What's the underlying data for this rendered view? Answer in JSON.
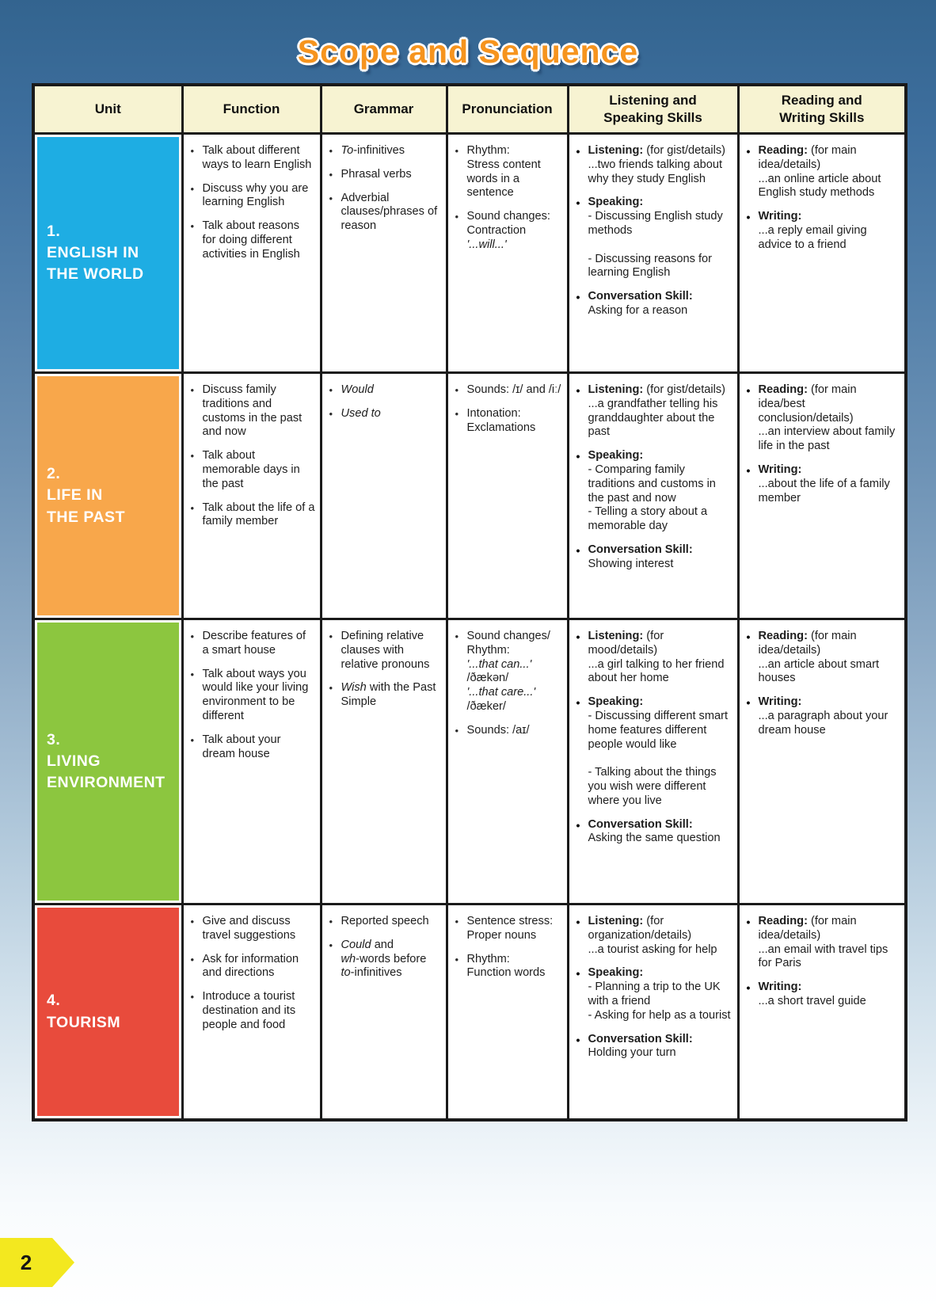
{
  "page": {
    "title": "Scope and Sequence",
    "title_color": "#F6941E",
    "page_number": "2",
    "tab_color": "#F3E81F"
  },
  "table": {
    "headers": [
      "Unit",
      "Function",
      "Grammar",
      "Pronunciation",
      "Listening and\nSpeaking Skills",
      "Reading and\nWriting Skills"
    ],
    "rows": [
      {
        "unit": {
          "number": "1.",
          "name": "ENGLISH IN\nTHE WORLD",
          "color": "#1EADE3"
        },
        "function": [
          "Talk about different ways to learn English",
          "Discuss why you are learning English",
          "Talk about reasons for doing different activities in English"
        ],
        "grammar": [
          [
            {
              "t": "To",
              "i": true
            },
            {
              "t": "-infinitives"
            }
          ],
          [
            {
              "t": "Phrasal verbs"
            }
          ],
          [
            {
              "t": "Adverbial clauses/phrases of reason"
            }
          ]
        ],
        "pronunciation": [
          [
            {
              "t": "Rhythm:\nStress content words in a sentence"
            }
          ],
          [
            {
              "t": "Sound changes:\nContraction\n"
            },
            {
              "t": "'...will...'",
              "i": true
            }
          ]
        ],
        "listening_speaking": [
          [
            {
              "t": "Listening:",
              "b": true
            },
            {
              "t": " (for gist/details)\n...two friends talking about why they study English"
            }
          ],
          [
            {
              "t": "Speaking:",
              "b": true
            },
            {
              "t": "\n- Discussing English study methods\n\n- Discussing reasons for learning English"
            }
          ],
          [
            {
              "t": "Conversation Skill:",
              "b": true
            },
            {
              "t": "\nAsking for a reason"
            }
          ]
        ],
        "reading_writing": [
          [
            {
              "t": "Reading:",
              "b": true
            },
            {
              "t": " (for main idea/details)\n...an online article about English study methods"
            }
          ],
          [
            {
              "t": "Writing:",
              "b": true
            },
            {
              "t": "\n...a reply email giving advice to a friend"
            }
          ]
        ]
      },
      {
        "unit": {
          "number": "2.",
          "name": "LIFE IN\nTHE PAST",
          "color": "#F8A74B"
        },
        "function": [
          "Discuss family traditions and customs in the past and now",
          "Talk about memorable days in the past",
          "Talk about the life of a family member"
        ],
        "grammar": [
          [
            {
              "t": "Would",
              "i": true
            }
          ],
          [
            {
              "t": "Used to",
              "i": true
            }
          ]
        ],
        "pronunciation": [
          [
            {
              "t": "Sounds: /ɪ/ and /iː/"
            }
          ],
          [
            {
              "t": "Intonation:\nExclamations"
            }
          ]
        ],
        "listening_speaking": [
          [
            {
              "t": "Listening:",
              "b": true
            },
            {
              "t": " (for gist/details)\n...a grandfather telling his granddaughter about the past"
            }
          ],
          [
            {
              "t": "Speaking:",
              "b": true
            },
            {
              "t": "\n- Comparing family traditions and customs in the past and now\n- Telling a story about a memorable day"
            }
          ],
          [
            {
              "t": "Conversation Skill:",
              "b": true
            },
            {
              "t": "\nShowing interest"
            }
          ]
        ],
        "reading_writing": [
          [
            {
              "t": "Reading:",
              "b": true
            },
            {
              "t": " (for main idea/best conclusion/details)\n...an interview about family life in the past"
            }
          ],
          [
            {
              "t": "Writing:",
              "b": true
            },
            {
              "t": "\n...about the life of a family member"
            }
          ]
        ]
      },
      {
        "unit": {
          "number": "3.",
          "name": "LIVING\nENVIRONMENT",
          "color": "#8CC63F"
        },
        "function": [
          "Describe features of a smart house",
          "Talk about ways you would like your living environment to be different",
          "Talk about your dream house"
        ],
        "grammar": [
          [
            {
              "t": "Defining relative clauses with relative pronouns"
            }
          ],
          [
            {
              "t": "Wish",
              "i": true
            },
            {
              "t": " with the Past Simple"
            }
          ]
        ],
        "pronunciation": [
          [
            {
              "t": "Sound changes/\nRhythm:\n"
            },
            {
              "t": "'...that can...'",
              "i": true
            },
            {
              "t": "\n/ðækən/\n"
            },
            {
              "t": "'...that care...'",
              "i": true
            },
            {
              "t": "\n/ðæker/"
            }
          ],
          [
            {
              "t": "Sounds: /aɪ/"
            }
          ]
        ],
        "listening_speaking": [
          [
            {
              "t": "Listening:",
              "b": true
            },
            {
              "t": " (for mood/details)\n...a girl talking to her friend about her home"
            }
          ],
          [
            {
              "t": "Speaking:",
              "b": true
            },
            {
              "t": "\n- Discussing different smart home features different people would like\n\n- Talking about the things you wish were different where you live"
            }
          ],
          [
            {
              "t": "Conversation Skill:",
              "b": true
            },
            {
              "t": "\nAsking the same question"
            }
          ]
        ],
        "reading_writing": [
          [
            {
              "t": "Reading:",
              "b": true
            },
            {
              "t": " (for main idea/details)\n...an article about smart houses"
            }
          ],
          [
            {
              "t": "Writing:",
              "b": true
            },
            {
              "t": "\n...a paragraph about your dream house"
            }
          ]
        ]
      },
      {
        "unit": {
          "number": "4.",
          "name": "TOURISM",
          "color": "#E84B3C"
        },
        "function": [
          "Give and discuss travel suggestions",
          "Ask for information and directions",
          "Introduce a tourist destination and its people and food"
        ],
        "grammar": [
          [
            {
              "t": "Reported speech"
            }
          ],
          [
            {
              "t": "Could",
              "i": true
            },
            {
              "t": " and\n"
            },
            {
              "t": "wh",
              "i": true
            },
            {
              "t": "-words before\n"
            },
            {
              "t": "to",
              "i": true
            },
            {
              "t": "-infinitives"
            }
          ]
        ],
        "pronunciation": [
          [
            {
              "t": "Sentence stress: Proper nouns"
            }
          ],
          [
            {
              "t": "Rhythm:\nFunction words"
            }
          ]
        ],
        "listening_speaking": [
          [
            {
              "t": "Listening:",
              "b": true
            },
            {
              "t": " (for organization/details)\n...a tourist asking for help"
            }
          ],
          [
            {
              "t": "Speaking:",
              "b": true
            },
            {
              "t": "\n- Planning a trip to the UK with a friend\n- Asking for help as a tourist"
            }
          ],
          [
            {
              "t": "Conversation Skill:",
              "b": true
            },
            {
              "t": "\nHolding your turn"
            }
          ]
        ],
        "reading_writing": [
          [
            {
              "t": "Reading:",
              "b": true
            },
            {
              "t": " (for main idea/details)\n...an email with travel tips for Paris"
            }
          ],
          [
            {
              "t": "Writing:",
              "b": true
            },
            {
              "t": "\n...a short travel guide"
            }
          ]
        ]
      }
    ]
  }
}
